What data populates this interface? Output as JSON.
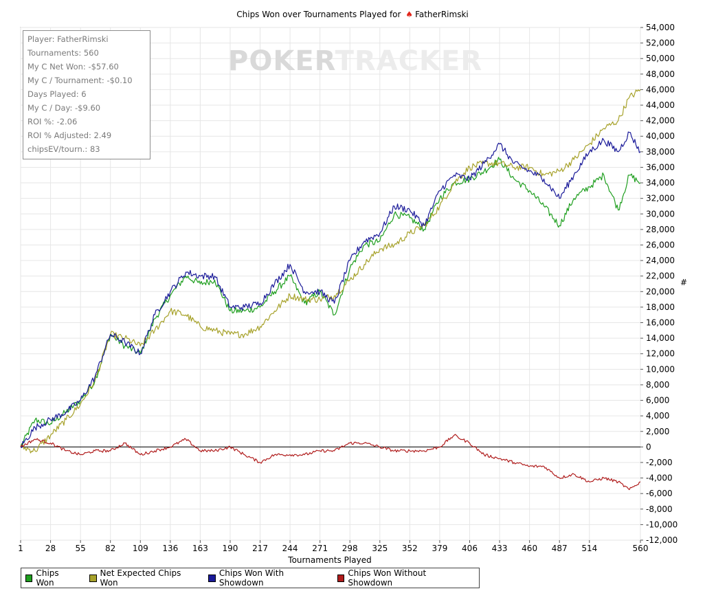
{
  "chart_data": {
    "type": "line",
    "title_prefix": "Chips Won over Tournaments Played for",
    "player": "FatherRimski",
    "xlabel": "Tournaments Played",
    "ylabel": "#",
    "xlim": [
      1,
      560
    ],
    "ylim": [
      -12000,
      54000
    ],
    "x_ticks": [
      1,
      28,
      55,
      82,
      109,
      136,
      163,
      190,
      217,
      244,
      271,
      298,
      325,
      352,
      379,
      406,
      433,
      460,
      487,
      514,
      560
    ],
    "y_ticks": [
      54000,
      52000,
      50000,
      48000,
      46000,
      44000,
      42000,
      40000,
      38000,
      36000,
      34000,
      32000,
      30000,
      28000,
      26000,
      24000,
      22000,
      20000,
      18000,
      16000,
      14000,
      12000,
      10000,
      8000,
      6000,
      4000,
      2000,
      0,
      -2000,
      -4000,
      -6000,
      -8000,
      -10000,
      -12000
    ],
    "y_tick_labels": [
      "54,000",
      "52,000",
      "50,000",
      "48,000",
      "46,000",
      "44,000",
      "42,000",
      "40,000",
      "38,000",
      "36,000",
      "34,000",
      "32,000",
      "30,000",
      "28,000",
      "26,000",
      "24,000",
      "22,000",
      "20,000",
      "18,000",
      "16,000",
      "14,000",
      "12,000",
      "10,000",
      "8,000",
      "6,000",
      "4,000",
      "2,000",
      "0",
      "-2,000",
      "-4,000",
      "-6,000",
      "-8,000",
      "-10,000",
      "-12,000"
    ],
    "grid": true,
    "legend_position": "bottom-left",
    "series": [
      {
        "name": "Chips Won",
        "color": "#1e9e1e",
        "points": [
          [
            1,
            0
          ],
          [
            14,
            3500
          ],
          [
            28,
            3000
          ],
          [
            42,
            4500
          ],
          [
            55,
            6000
          ],
          [
            68,
            8500
          ],
          [
            82,
            14500
          ],
          [
            95,
            13000
          ],
          [
            109,
            12000
          ],
          [
            122,
            16500
          ],
          [
            136,
            19500
          ],
          [
            150,
            22000
          ],
          [
            163,
            21000
          ],
          [
            176,
            21500
          ],
          [
            190,
            17500
          ],
          [
            203,
            17500
          ],
          [
            217,
            18000
          ],
          [
            230,
            20000
          ],
          [
            244,
            22000
          ],
          [
            257,
            18500
          ],
          [
            271,
            20000
          ],
          [
            284,
            17000
          ],
          [
            298,
            23000
          ],
          [
            311,
            26000
          ],
          [
            325,
            26500
          ],
          [
            338,
            30000
          ],
          [
            352,
            29500
          ],
          [
            365,
            28000
          ],
          [
            379,
            32000
          ],
          [
            392,
            34000
          ],
          [
            406,
            34500
          ],
          [
            419,
            35500
          ],
          [
            433,
            37000
          ],
          [
            446,
            34500
          ],
          [
            460,
            33000
          ],
          [
            473,
            31000
          ],
          [
            487,
            28500
          ],
          [
            500,
            32000
          ],
          [
            514,
            33500
          ],
          [
            527,
            35000
          ],
          [
            540,
            30500
          ],
          [
            550,
            35000
          ],
          [
            560,
            34000
          ]
        ]
      },
      {
        "name": "Net Expected Chips Won",
        "color": "#a7a22b",
        "points": [
          [
            1,
            0
          ],
          [
            14,
            -500
          ],
          [
            28,
            1500
          ],
          [
            42,
            3500
          ],
          [
            55,
            5500
          ],
          [
            68,
            8500
          ],
          [
            82,
            14500
          ],
          [
            95,
            14000
          ],
          [
            109,
            13000
          ],
          [
            122,
            15000
          ],
          [
            136,
            17500
          ],
          [
            150,
            17000
          ],
          [
            163,
            15500
          ],
          [
            176,
            15000
          ],
          [
            190,
            14500
          ],
          [
            203,
            14500
          ],
          [
            217,
            15500
          ],
          [
            230,
            17500
          ],
          [
            244,
            19500
          ],
          [
            257,
            19000
          ],
          [
            271,
            19000
          ],
          [
            284,
            19500
          ],
          [
            298,
            21500
          ],
          [
            311,
            23500
          ],
          [
            325,
            25500
          ],
          [
            338,
            26000
          ],
          [
            352,
            27500
          ],
          [
            365,
            28500
          ],
          [
            379,
            31000
          ],
          [
            392,
            34000
          ],
          [
            406,
            36000
          ],
          [
            419,
            36500
          ],
          [
            433,
            36500
          ],
          [
            446,
            36000
          ],
          [
            460,
            36000
          ],
          [
            473,
            35000
          ],
          [
            487,
            35500
          ],
          [
            500,
            37000
          ],
          [
            514,
            39000
          ],
          [
            527,
            41000
          ],
          [
            540,
            42000
          ],
          [
            550,
            45000
          ],
          [
            560,
            46000
          ]
        ]
      },
      {
        "name": "Chips Won With Showdown",
        "color": "#1a1a99",
        "points": [
          [
            1,
            0
          ],
          [
            14,
            2500
          ],
          [
            28,
            3500
          ],
          [
            42,
            4500
          ],
          [
            55,
            6000
          ],
          [
            68,
            9000
          ],
          [
            82,
            14500
          ],
          [
            95,
            13500
          ],
          [
            109,
            12000
          ],
          [
            122,
            17000
          ],
          [
            136,
            20000
          ],
          [
            150,
            22500
          ],
          [
            163,
            22000
          ],
          [
            176,
            22000
          ],
          [
            190,
            18000
          ],
          [
            203,
            18000
          ],
          [
            217,
            18500
          ],
          [
            230,
            21000
          ],
          [
            244,
            23500
          ],
          [
            257,
            20000
          ],
          [
            271,
            20000
          ],
          [
            284,
            18500
          ],
          [
            298,
            24000
          ],
          [
            311,
            26500
          ],
          [
            325,
            27500
          ],
          [
            338,
            31000
          ],
          [
            352,
            30500
          ],
          [
            365,
            28500
          ],
          [
            379,
            33000
          ],
          [
            392,
            35000
          ],
          [
            406,
            34500
          ],
          [
            419,
            36500
          ],
          [
            433,
            39000
          ],
          [
            446,
            36500
          ],
          [
            460,
            35500
          ],
          [
            473,
            34500
          ],
          [
            487,
            32000
          ],
          [
            500,
            35000
          ],
          [
            514,
            38000
          ],
          [
            527,
            39500
          ],
          [
            540,
            38000
          ],
          [
            550,
            40500
          ],
          [
            560,
            38000
          ]
        ]
      },
      {
        "name": "Chips Won Without Showdown",
        "color": "#b01c1c",
        "points": [
          [
            1,
            0
          ],
          [
            14,
            1000
          ],
          [
            28,
            500
          ],
          [
            42,
            -500
          ],
          [
            55,
            -1000
          ],
          [
            68,
            -500
          ],
          [
            82,
            -500
          ],
          [
            95,
            500
          ],
          [
            109,
            -1000
          ],
          [
            122,
            -500
          ],
          [
            136,
            0
          ],
          [
            150,
            1000
          ],
          [
            163,
            -500
          ],
          [
            176,
            -500
          ],
          [
            190,
            0
          ],
          [
            203,
            -1000
          ],
          [
            217,
            -2000
          ],
          [
            230,
            -1000
          ],
          [
            244,
            -1000
          ],
          [
            257,
            -1000
          ],
          [
            271,
            -500
          ],
          [
            284,
            -500
          ],
          [
            298,
            500
          ],
          [
            311,
            500
          ],
          [
            325,
            0
          ],
          [
            338,
            -500
          ],
          [
            352,
            -500
          ],
          [
            365,
            -500
          ],
          [
            379,
            0
          ],
          [
            392,
            1500
          ],
          [
            406,
            500
          ],
          [
            419,
            -1000
          ],
          [
            433,
            -1500
          ],
          [
            446,
            -2000
          ],
          [
            460,
            -2500
          ],
          [
            473,
            -2500
          ],
          [
            487,
            -4000
          ],
          [
            500,
            -3500
          ],
          [
            514,
            -4500
          ],
          [
            527,
            -4000
          ],
          [
            540,
            -4500
          ],
          [
            550,
            -5500
          ],
          [
            560,
            -4500
          ]
        ]
      }
    ]
  },
  "stats": [
    "Player: FatherRimski",
    "Tournaments: 560",
    "My C Net Won: -$57.60",
    "My C / Tournament: -$0.10",
    "Days Played: 6",
    "My C / Day: -$9.60",
    "ROI %: -2.06",
    "ROI % Adjusted: 2.49",
    "chipsEV/tourn.: 83"
  ],
  "watermark": {
    "part1": "POKER",
    "part2": "TRACKER"
  }
}
